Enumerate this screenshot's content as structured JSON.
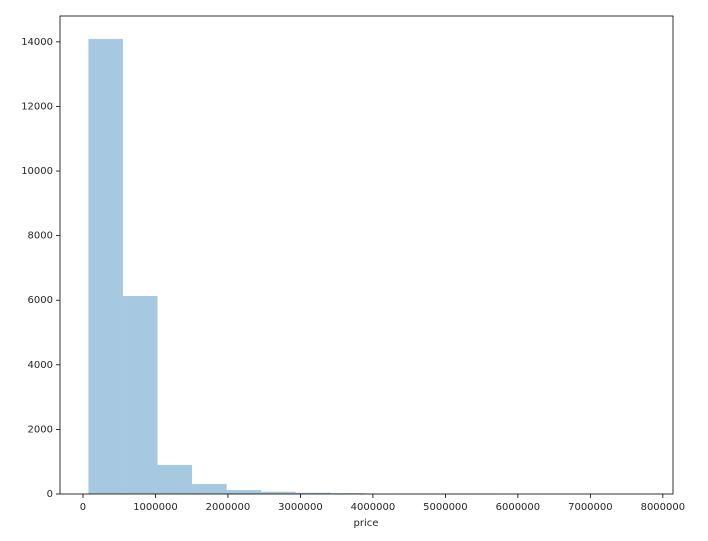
{
  "chart_data": {
    "type": "histogram",
    "x_label": "price",
    "bins": [
      75000,
      551562.5,
      1028125,
      1504687.5,
      1981250,
      2457812.5,
      2934375,
      3410937.5,
      3887500,
      4364062.5,
      4840625,
      5317187.5,
      5793750,
      6270312.5,
      6746875,
      7223437.5,
      7700000
    ],
    "values": [
      14090,
      6130,
      900,
      310,
      120,
      70,
      40,
      25,
      10,
      5,
      3,
      2,
      1,
      1,
      0,
      1
    ],
    "color": "#a6c8e0",
    "xlim": [
      -317000,
      8140000
    ],
    "xticks": [
      0,
      1000000,
      2000000,
      3000000,
      4000000,
      5000000,
      6000000,
      7000000,
      8000000
    ],
    "ylim": [
      0,
      14800
    ],
    "yticks": [
      0,
      2000,
      4000,
      6000,
      8000,
      10000,
      12000,
      14000
    ]
  }
}
